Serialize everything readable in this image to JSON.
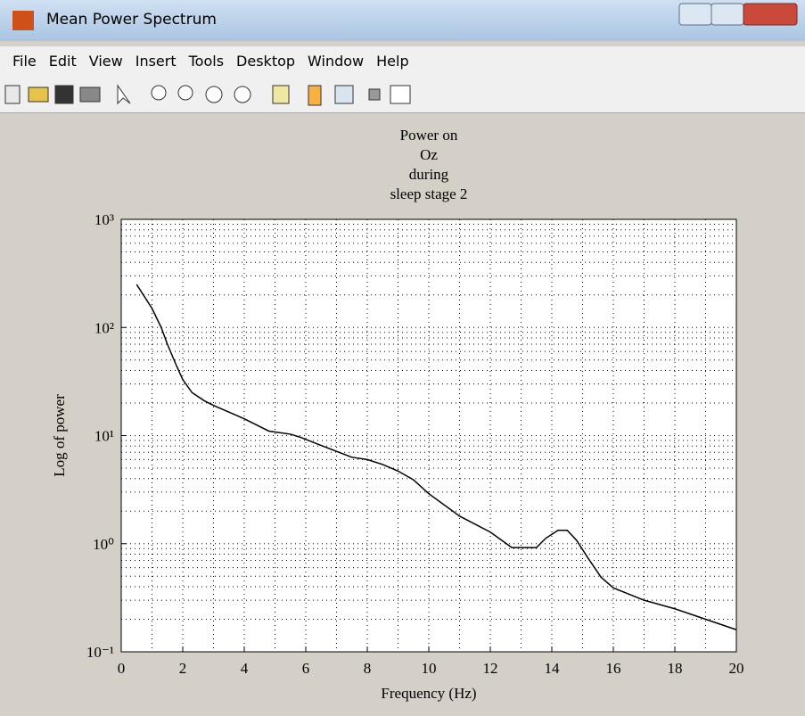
{
  "window": {
    "title": "Mean Power Spectrum",
    "menu": [
      "File",
      "Edit",
      "View",
      "Insert",
      "Tools",
      "Desktop",
      "Window",
      "Help"
    ]
  },
  "chart_data": {
    "type": "line",
    "title": [
      "Power on",
      "Oz",
      "during",
      "sleep stage 2"
    ],
    "xlabel": "Frequency (Hz)",
    "ylabel": "Log of power",
    "x": [
      0.5,
      1.0,
      1.3,
      1.5,
      1.8,
      2.0,
      2.3,
      2.7,
      3.0,
      4.0,
      4.8,
      5.5,
      5.8,
      6.5,
      7.5,
      8.0,
      8.5,
      9.0,
      9.5,
      10,
      11,
      12,
      12.7,
      13.5,
      13.8,
      14.2,
      14.5,
      14.8,
      15.2,
      15.6,
      16,
      17,
      18,
      19,
      20
    ],
    "series": [
      {
        "color": "#000000",
        "values": [
          250,
          150,
          100,
          70,
          44,
          33,
          25,
          21,
          19,
          14.3,
          11,
          10.3,
          9.7,
          8.1,
          6.3,
          6,
          5.4,
          4.7,
          3.9,
          2.9,
          1.8,
          1.28,
          0.92,
          0.92,
          1.12,
          1.33,
          1.33,
          1.08,
          0.72,
          0.49,
          0.39,
          0.3,
          0.25,
          0.2,
          0.16
        ]
      }
    ],
    "xlim": [
      0,
      20
    ],
    "xticks": [
      0,
      2,
      4,
      6,
      8,
      10,
      12,
      14,
      16,
      18,
      20
    ],
    "ylim": [
      0.1,
      1000
    ],
    "yscale": "log",
    "yticks": [
      {
        "value": 0.1,
        "label": "10⁻¹"
      },
      {
        "value": 1,
        "label": "10⁰"
      },
      {
        "value": 10,
        "label": "10¹"
      },
      {
        "value": 100,
        "label": "10²"
      },
      {
        "value": 1000,
        "label": "10³"
      }
    ],
    "grid": true,
    "minor_grid": true
  }
}
